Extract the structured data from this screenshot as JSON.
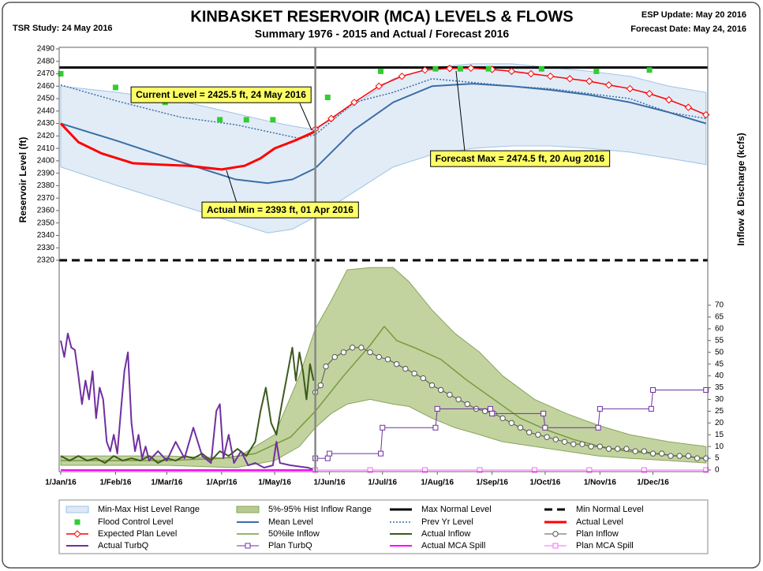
{
  "chart_data": {
    "type": "line",
    "title": "KINBASKET RESERVOIR (MCA) LEVELS & FLOWS",
    "subtitle": "Summary 1976 - 2015 and Actual / Forecast 2016",
    "study": "TSR Study: 24 May 2016",
    "esp_update": "ESP Update:  May 20 2016",
    "forecast_date": "Forecast Date: May 24, 2016",
    "y_label": "Reservoir Level (ft)",
    "y2_label": "Inflow & Discharge (kcfs)",
    "annotations": [
      "Current Level = 2425.5 ft, 24 May 2016",
      "Actual Min = 2393 ft, 01 Apr 2016",
      "Forecast Max = 2474.5 ft, 20 Aug 2016"
    ],
    "xlim": [
      0,
      366
    ],
    "xticks": [
      {
        "value": 0,
        "label": "1/Jan/16"
      },
      {
        "value": 31,
        "label": "1/Feb/16"
      },
      {
        "value": 60,
        "label": "1/Mar/16"
      },
      {
        "value": 91,
        "label": "1/Apr/16"
      },
      {
        "value": 121,
        "label": "1/May/16"
      },
      {
        "value": 152,
        "label": "1/Jun/16"
      },
      {
        "value": 182,
        "label": "1/Jul/16"
      },
      {
        "value": 213,
        "label": "1/Aug/16"
      },
      {
        "value": 244,
        "label": "1/Sep/16"
      },
      {
        "value": 274,
        "label": "1/Oct/16"
      },
      {
        "value": 305,
        "label": "1/Nov/16"
      },
      {
        "value": 335,
        "label": "1/Dec/16"
      }
    ],
    "ylim": [
      2320,
      2490
    ],
    "yticks": [
      2320,
      2330,
      2340,
      2350,
      2360,
      2370,
      2380,
      2390,
      2400,
      2410,
      2420,
      2430,
      2440,
      2450,
      2460,
      2470,
      2480,
      2490
    ],
    "y2lim": [
      0,
      70
    ],
    "y2ticks": [
      0,
      5,
      10,
      15,
      20,
      25,
      30,
      35,
      40,
      45,
      50,
      55,
      60,
      65,
      70
    ],
    "series": [
      {
        "name": "Min-Max Hist Level Range",
        "kind": "band",
        "axis": "y",
        "color": "#dde9f6",
        "edge": "#9dc3e6",
        "x": [
          0,
          32,
          68,
          99,
          117,
          131,
          144,
          166,
          188,
          210,
          233,
          255,
          277,
          299,
          322,
          344,
          365
        ],
        "high": [
          2460,
          2455,
          2448,
          2438,
          2432,
          2428,
          2425,
          2445,
          2466,
          2475,
          2478,
          2478,
          2475,
          2472,
          2468,
          2460,
          2455
        ],
        "low": [
          2395,
          2380,
          2364,
          2350,
          2342,
          2345,
          2355,
          2375,
          2395,
          2405,
          2410,
          2412,
          2412,
          2410,
          2407,
          2402,
          2397
        ]
      },
      {
        "name": "5%-95% Hist Inflow Range",
        "kind": "band",
        "axis": "y2",
        "color": "#b7cb8f",
        "edge": "#8aa55a",
        "x": [
          0,
          31,
          60,
          99,
          121,
          135,
          144,
          153,
          162,
          175,
          188,
          197,
          210,
          223,
          237,
          250,
          268,
          286,
          304,
          322,
          344,
          365
        ],
        "high": [
          6,
          6,
          6,
          5,
          15,
          40,
          60,
          72,
          85,
          86,
          86,
          80,
          68,
          58,
          50,
          40,
          30,
          24,
          19,
          15,
          12,
          10
        ],
        "low": [
          2,
          2,
          2,
          1,
          4,
          10,
          18,
          24,
          28,
          30,
          28,
          27,
          22,
          18,
          15,
          12,
          10,
          8,
          6,
          5,
          4,
          3
        ]
      },
      {
        "name": "Max Normal Level",
        "kind": "hline",
        "axis": "y",
        "color": "#000000",
        "dash": "solid",
        "value": 2475
      },
      {
        "name": "Min Normal Level",
        "kind": "hline",
        "axis": "y",
        "color": "#000000",
        "dash": "dashed",
        "value": 2320
      },
      {
        "name": "Flood Control Level",
        "kind": "markers",
        "axis": "y",
        "color": "#33cc33",
        "marker": "square",
        "x": [
          0,
          31,
          59,
          90,
          105,
          120,
          151,
          181,
          212,
          226,
          242,
          272,
          303,
          333
        ],
        "values": [
          2470,
          2459,
          2447,
          2433,
          2433,
          2433,
          2451,
          2472,
          2474,
          2474,
          2474,
          2474,
          2472,
          2473
        ]
      },
      {
        "name": "Mean Level",
        "kind": "line",
        "axis": "y",
        "color": "#3b6ea5",
        "dash": "solid",
        "x": [
          0,
          32,
          68,
          99,
          117,
          131,
          144,
          166,
          188,
          210,
          233,
          255,
          277,
          299,
          322,
          344,
          365
        ],
        "values": [
          2430,
          2416,
          2399,
          2385,
          2382,
          2385,
          2394,
          2425,
          2447,
          2460,
          2462,
          2460,
          2457,
          2453,
          2447,
          2439,
          2430
        ]
      },
      {
        "name": "Prev Yr Level",
        "kind": "line",
        "axis": "y",
        "color": "#3b6ea5",
        "dash": "dotted",
        "x": [
          0,
          32,
          68,
          99,
          135,
          144,
          166,
          188,
          210,
          233,
          255,
          277,
          299,
          322,
          344,
          365
        ],
        "values": [
          2461,
          2448,
          2435,
          2429,
          2418,
          2421,
          2447,
          2455,
          2466,
          2463,
          2460,
          2458,
          2454,
          2450,
          2439,
          2434
        ]
      },
      {
        "name": "Actual Level",
        "kind": "line",
        "axis": "y",
        "color": "#ff0000",
        "dash": "solid",
        "x": [
          0,
          10,
          23,
          41,
          55,
          72,
          91,
          104,
          113,
          121,
          132,
          143,
          144
        ],
        "values": [
          2430,
          2415,
          2406,
          2398,
          2397,
          2396,
          2393,
          2396,
          2402,
          2410,
          2416,
          2423,
          2425.5
        ]
      },
      {
        "name": "Expected Plan Level",
        "kind": "line",
        "axis": "y",
        "color": "#ff0000",
        "dash": "solid",
        "marker": "diamond",
        "x": [
          144,
          153,
          166,
          180,
          193,
          206,
          220,
          232,
          244,
          255,
          266,
          277,
          288,
          299,
          310,
          322,
          333,
          344,
          355,
          365
        ],
        "values": [
          2425.5,
          2434,
          2447,
          2460,
          2468,
          2473,
          2474.3,
          2474.5,
          2473.5,
          2472,
          2470,
          2468,
          2466,
          2464,
          2461,
          2458,
          2454,
          2449,
          2443,
          2437
        ]
      },
      {
        "name": "50%ile Inflow",
        "kind": "line",
        "axis": "y2",
        "color": "#7a9a3a",
        "dash": "solid",
        "x": [
          0,
          31,
          60,
          91,
          110,
          130,
          144,
          160,
          175,
          183,
          190,
          200,
          215,
          230,
          245,
          260,
          275,
          290,
          305,
          320,
          335,
          350,
          365
        ],
        "values": [
          4,
          4,
          4,
          5,
          7,
          14,
          25,
          40,
          53,
          61,
          55,
          52,
          47,
          38,
          30,
          22,
          17,
          13,
          10,
          8,
          7,
          6,
          5
        ]
      },
      {
        "name": "Actual Inflow",
        "kind": "line",
        "axis": "y2",
        "color": "#3d5a1e",
        "dash": "solid",
        "x": [
          0,
          5,
          10,
          15,
          20,
          25,
          30,
          35,
          40,
          45,
          50,
          55,
          60,
          65,
          70,
          75,
          80,
          85,
          90,
          95,
          100,
          105,
          110,
          113,
          116,
          119,
          122,
          125,
          128,
          131,
          133,
          135,
          137,
          139,
          141,
          143
        ],
        "values": [
          6,
          4,
          6,
          4,
          5,
          3,
          6,
          4,
          5,
          4,
          6,
          3,
          5,
          4,
          6,
          5,
          7,
          4,
          8,
          6,
          9,
          6,
          12,
          25,
          35,
          20,
          15,
          28,
          40,
          52,
          38,
          50,
          42,
          30,
          45,
          38
        ]
      },
      {
        "name": "Plan Inflow",
        "kind": "line",
        "axis": "y2",
        "color": "#555555",
        "dash": "solid",
        "marker": "circle",
        "x": [
          144,
          147,
          150,
          155,
          160,
          165,
          170,
          175,
          180,
          185,
          190,
          195,
          200,
          205,
          210,
          215,
          220,
          225,
          230,
          235,
          240,
          245,
          250,
          255,
          260,
          265,
          270,
          275,
          280,
          285,
          290,
          295,
          300,
          305,
          310,
          315,
          320,
          325,
          330,
          335,
          340,
          345,
          350,
          355,
          360,
          365
        ],
        "values": [
          33,
          36,
          44,
          48,
          50,
          52,
          52,
          50,
          48,
          47,
          45,
          43,
          41,
          39,
          36,
          34,
          32,
          30,
          28,
          26,
          25,
          24,
          22,
          20,
          18,
          16,
          15,
          14,
          13,
          12,
          11,
          11,
          10,
          10,
          9,
          9,
          9,
          8,
          8,
          7,
          7,
          6,
          6,
          6,
          5,
          5
        ]
      },
      {
        "name": "Actual TurbQ",
        "kind": "line",
        "axis": "y2",
        "color": "#7030a0",
        "dash": "solid",
        "x": [
          0,
          2,
          4,
          6,
          8,
          10,
          12,
          14,
          16,
          18,
          20,
          22,
          24,
          26,
          28,
          30,
          32,
          34,
          36,
          38,
          40,
          42,
          44,
          46,
          48,
          50,
          55,
          60,
          65,
          70,
          75,
          80,
          85,
          88,
          90,
          92,
          95,
          98,
          102,
          106,
          110,
          115,
          120,
          122,
          124,
          130,
          140,
          144
        ],
        "values": [
          55,
          48,
          58,
          52,
          51,
          40,
          28,
          38,
          30,
          42,
          22,
          35,
          30,
          12,
          8,
          15,
          7,
          25,
          42,
          50,
          20,
          8,
          15,
          5,
          10,
          4,
          8,
          4,
          12,
          5,
          18,
          6,
          3,
          25,
          28,
          5,
          15,
          3,
          8,
          2,
          3,
          1,
          2,
          12,
          3,
          2,
          1,
          0
        ]
      },
      {
        "name": "Plan TurbQ",
        "kind": "line",
        "axis": "y2",
        "color": "#7030a0",
        "dash": "solid",
        "marker": "square",
        "x": [
          144,
          151,
          152,
          181,
          182,
          212,
          213,
          243,
          244,
          273,
          274,
          304,
          305,
          334,
          335,
          365
        ],
        "values": [
          5,
          5,
          7,
          7,
          18,
          18,
          26,
          26,
          24,
          24,
          18,
          18,
          26,
          26,
          34,
          34
        ]
      },
      {
        "name": "Actual MCA Spill",
        "kind": "line",
        "axis": "y2",
        "color": "#ff00ff",
        "dash": "solid",
        "x": [
          0,
          144
        ],
        "values": [
          0,
          0
        ]
      },
      {
        "name": "Plan MCA Spill",
        "kind": "line",
        "axis": "y2",
        "color": "#ff66ff",
        "dash": "solid",
        "marker": "square",
        "x": [
          144,
          175,
          206,
          237,
          268,
          299,
          330,
          365
        ],
        "values": [
          0,
          0,
          0,
          0,
          0,
          0,
          0,
          0
        ]
      }
    ]
  }
}
